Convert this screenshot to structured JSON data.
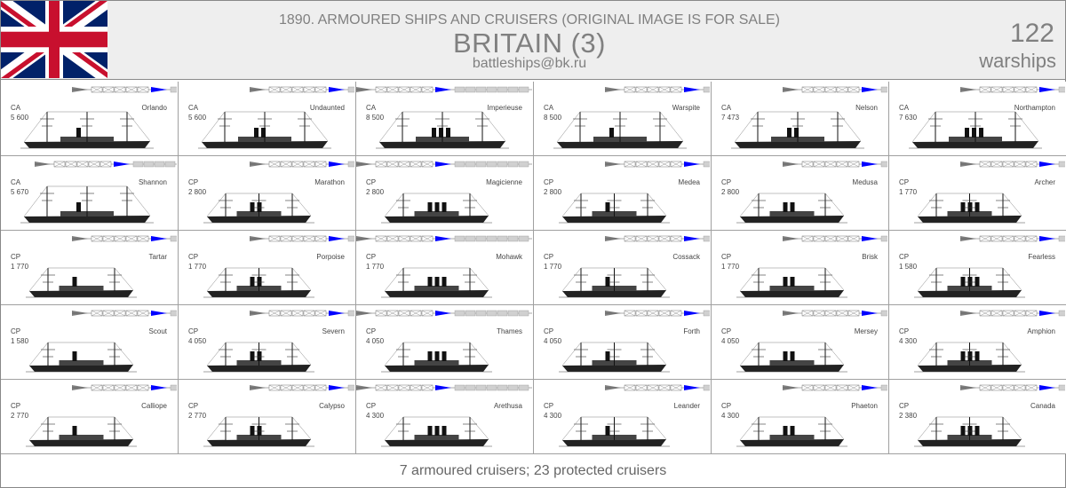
{
  "header": {
    "subtitle": "1890. ARMOURED SHIPS AND CRUISERS (ORIGINAL IMAGE IS FOR SALE)",
    "country": "BRITAIN (3)",
    "email": "battleships@bk.ru",
    "count": "122",
    "count_label": "warships",
    "flag_icon": "union-jack-flag-icon"
  },
  "colors": {
    "header_bg": "#eeeeee",
    "text_gray": "#808080",
    "scale_flag_blue": "#0000ff",
    "scale_flag_gray": "#808080",
    "flag_blue": "#012169",
    "flag_red": "#c8102e"
  },
  "ships": [
    {
      "type": "CA",
      "displacement": "5 600",
      "name": "Orlando"
    },
    {
      "type": "CA",
      "displacement": "5 600",
      "name": "Undaunted"
    },
    {
      "type": "CA",
      "displacement": "8 500",
      "name": "Imperieuse"
    },
    {
      "type": "CA",
      "displacement": "8 500",
      "name": "Warspite"
    },
    {
      "type": "CA",
      "displacement": "7 473",
      "name": "Nelson"
    },
    {
      "type": "CA",
      "displacement": "7 630",
      "name": "Northampton"
    },
    {
      "type": "CA",
      "displacement": "5 670",
      "name": "Shannon"
    },
    {
      "type": "CP",
      "displacement": "2 800",
      "name": "Marathon"
    },
    {
      "type": "CP",
      "displacement": "2 800",
      "name": "Magicienne"
    },
    {
      "type": "CP",
      "displacement": "2 800",
      "name": "Medea"
    },
    {
      "type": "CP",
      "displacement": "2 800",
      "name": "Medusa"
    },
    {
      "type": "CP",
      "displacement": "1 770",
      "name": "Archer"
    },
    {
      "type": "CP",
      "displacement": "1 770",
      "name": "Tartar"
    },
    {
      "type": "CP",
      "displacement": "1 770",
      "name": "Porpoise"
    },
    {
      "type": "CP",
      "displacement": "1 770",
      "name": "Mohawk"
    },
    {
      "type": "CP",
      "displacement": "1 770",
      "name": "Cossack"
    },
    {
      "type": "CP",
      "displacement": "1 770",
      "name": "Brisk"
    },
    {
      "type": "CP",
      "displacement": "1 580",
      "name": "Fearless"
    },
    {
      "type": "CP",
      "displacement": "1 580",
      "name": "Scout"
    },
    {
      "type": "CP",
      "displacement": "4 050",
      "name": "Severn"
    },
    {
      "type": "CP",
      "displacement": "4 050",
      "name": "Thames"
    },
    {
      "type": "CP",
      "displacement": "4 050",
      "name": "Forth"
    },
    {
      "type": "CP",
      "displacement": "4 050",
      "name": "Mersey"
    },
    {
      "type": "CP",
      "displacement": "4 300",
      "name": "Amphion"
    },
    {
      "type": "CP",
      "displacement": "2 770",
      "name": "Calliope"
    },
    {
      "type": "CP",
      "displacement": "2 770",
      "name": "Calypso"
    },
    {
      "type": "CP",
      "displacement": "4 300",
      "name": "Arethusa"
    },
    {
      "type": "CP",
      "displacement": "4 300",
      "name": "Leander"
    },
    {
      "type": "CP",
      "displacement": "4 300",
      "name": "Phaeton"
    },
    {
      "type": "CP",
      "displacement": "2 380",
      "name": "Canada"
    }
  ],
  "footer": {
    "summary": "7 armoured cruisers; 23 protected cruisers"
  }
}
